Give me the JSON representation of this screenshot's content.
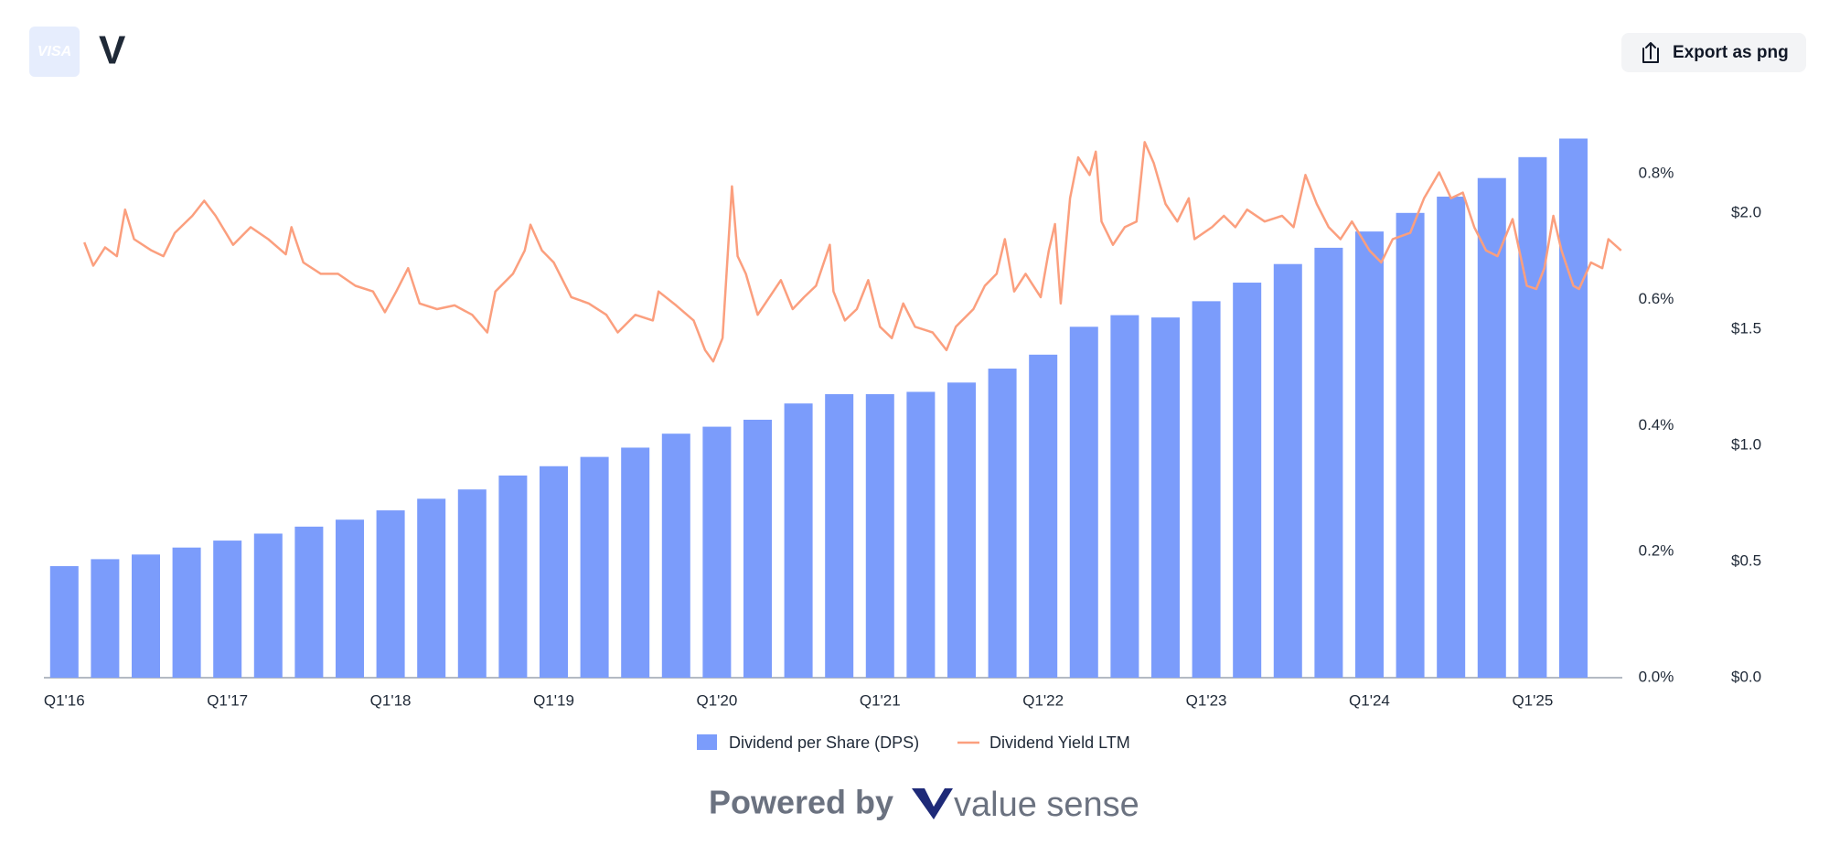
{
  "header": {
    "logo_text": "VISA",
    "ticker": "V",
    "button": "Export as png"
  },
  "chart_data": {
    "type": "bar_line",
    "categories": [
      "Q1'16",
      null,
      null,
      null,
      "Q1'17",
      null,
      null,
      null,
      "Q1'18",
      null,
      null,
      null,
      "Q1'19",
      null,
      null,
      null,
      "Q1'20",
      null,
      null,
      null,
      "Q1'21",
      null,
      null,
      null,
      "Q1'22",
      null,
      null,
      null,
      "Q1'23",
      null,
      null,
      null,
      "Q1'24",
      null,
      null,
      null,
      "Q1'25",
      null
    ],
    "xlim": [
      -0.5,
      38.2
    ],
    "ylim": [
      0,
      2.44
    ],
    "yticks": [
      {
        "value": 0,
        "label": "$0.0"
      },
      {
        "value": 0.5,
        "label": "$0.5"
      },
      {
        "value": 1.0,
        "label": "$1.0"
      },
      {
        "value": 1.5,
        "label": "$1.5"
      },
      {
        "value": 2.0,
        "label": "$2.0"
      }
    ],
    "y2lim": [
      0,
      0.9
    ],
    "y2ticks": [
      {
        "value": 0,
        "label": "0.0%"
      },
      {
        "value": 0.2,
        "label": "0.2%"
      },
      {
        "value": 0.4,
        "label": "0.4%"
      },
      {
        "value": 0.6,
        "label": "0.6%"
      },
      {
        "value": 0.8,
        "label": "0.8%"
      }
    ],
    "series": [
      {
        "name": "Dividend per Share (DPS)",
        "type": "bar",
        "color": "#7b9cfb",
        "values": [
          0.48,
          0.51,
          0.53,
          0.56,
          0.59,
          0.62,
          0.65,
          0.68,
          0.72,
          0.77,
          0.81,
          0.87,
          0.91,
          0.95,
          0.99,
          1.05,
          1.08,
          1.11,
          1.18,
          1.22,
          1.22,
          1.23,
          1.27,
          1.33,
          1.39,
          1.51,
          1.56,
          1.55,
          1.62,
          1.7,
          1.78,
          1.85,
          1.92,
          2.0,
          2.07,
          2.15,
          2.24,
          2.32
        ]
      },
      {
        "name": "Dividend Yield LTM",
        "type": "line",
        "color": "#fb9f7e",
        "axis": "y2",
        "x": [
          0.49,
          0.71,
          1.0,
          1.29,
          1.49,
          1.71,
          2.14,
          2.43,
          2.71,
          3.14,
          3.43,
          3.71,
          4.14,
          4.57,
          5.0,
          5.43,
          5.57,
          5.86,
          6.29,
          6.71,
          7.14,
          7.57,
          7.86,
          8.14,
          8.43,
          8.71,
          9.14,
          9.57,
          10.0,
          10.37,
          10.57,
          11.0,
          11.29,
          11.43,
          11.71,
          12.0,
          12.43,
          12.86,
          13.29,
          13.57,
          14.0,
          14.43,
          14.57,
          15.0,
          15.43,
          15.71,
          15.91,
          16.14,
          16.29,
          16.37,
          16.51,
          16.71,
          17.0,
          17.29,
          17.57,
          17.86,
          18.14,
          18.43,
          18.77,
          18.86,
          19.14,
          19.43,
          19.71,
          20.0,
          20.29,
          20.57,
          20.86,
          21.29,
          21.63,
          21.86,
          22.29,
          22.57,
          22.86,
          23.06,
          23.29,
          23.57,
          23.94,
          24.14,
          24.29,
          24.43,
          24.66,
          24.86,
          25.14,
          25.29,
          25.43,
          25.71,
          26.0,
          26.29,
          26.49,
          26.71,
          27.0,
          27.29,
          27.57,
          27.71,
          28.14,
          28.43,
          28.71,
          29.0,
          29.43,
          29.86,
          30.14,
          30.43,
          30.71,
          31.0,
          31.29,
          31.57,
          32.0,
          32.29,
          32.57,
          33.0,
          33.34,
          33.71,
          34.0,
          34.29,
          34.57,
          34.86,
          35.14,
          35.51,
          35.86,
          36.09,
          36.29,
          36.51,
          36.71,
          37.0,
          37.14,
          37.43,
          37.71,
          37.86,
          38.17
        ],
        "values": [
          0.691,
          0.654,
          0.683,
          0.669,
          0.743,
          0.696,
          0.678,
          0.669,
          0.706,
          0.733,
          0.757,
          0.733,
          0.687,
          0.715,
          0.696,
          0.672,
          0.715,
          0.659,
          0.641,
          0.641,
          0.622,
          0.613,
          0.58,
          0.613,
          0.65,
          0.594,
          0.585,
          0.591,
          0.576,
          0.548,
          0.613,
          0.641,
          0.678,
          0.719,
          0.678,
          0.659,
          0.604,
          0.594,
          0.576,
          0.548,
          0.576,
          0.567,
          0.613,
          0.591,
          0.567,
          0.52,
          0.502,
          0.539,
          0.696,
          0.78,
          0.669,
          0.641,
          0.576,
          0.604,
          0.631,
          0.585,
          0.604,
          0.622,
          0.687,
          0.613,
          0.567,
          0.585,
          0.631,
          0.557,
          0.539,
          0.594,
          0.557,
          0.548,
          0.52,
          0.557,
          0.585,
          0.622,
          0.641,
          0.696,
          0.613,
          0.641,
          0.604,
          0.678,
          0.72,
          0.594,
          0.761,
          0.826,
          0.798,
          0.835,
          0.724,
          0.687,
          0.715,
          0.724,
          0.85,
          0.817,
          0.752,
          0.724,
          0.761,
          0.696,
          0.715,
          0.733,
          0.715,
          0.743,
          0.724,
          0.733,
          0.715,
          0.798,
          0.752,
          0.715,
          0.696,
          0.724,
          0.678,
          0.659,
          0.696,
          0.706,
          0.761,
          0.802,
          0.761,
          0.77,
          0.715,
          0.678,
          0.669,
          0.728,
          0.622,
          0.617,
          0.65,
          0.733,
          0.678,
          0.622,
          0.617,
          0.659,
          0.65,
          0.696,
          0.678
        ]
      }
    ]
  },
  "footer": {
    "powered_by": "Powered by",
    "brand": "value sense"
  }
}
